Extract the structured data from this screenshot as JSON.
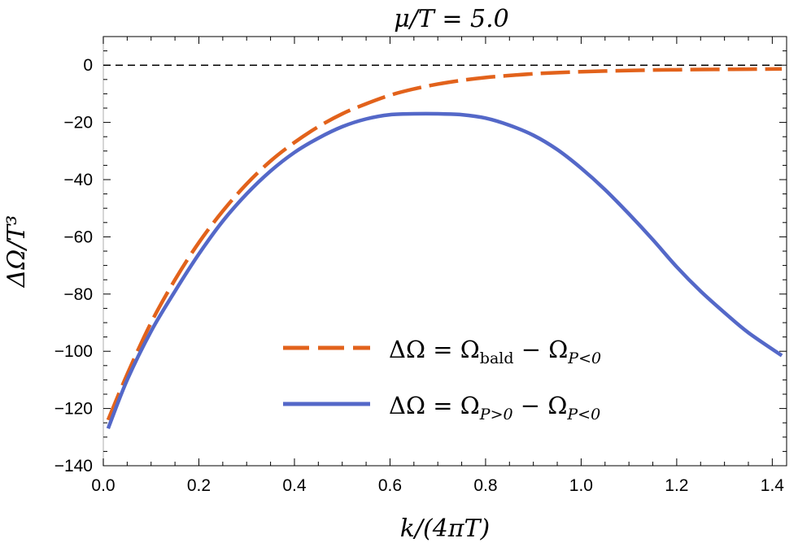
{
  "chart_data": {
    "type": "line",
    "title": "μ/T = 5.0",
    "xlabel": "k/(4πT)",
    "ylabel": "ΔΩ/T³",
    "xlim": [
      0.0,
      1.43
    ],
    "ylim": [
      -140,
      10
    ],
    "x_ticks": [
      "0.0",
      "0.2",
      "0.4",
      "0.6",
      "0.8",
      "1.0",
      "1.2",
      "1.4"
    ],
    "y_ticks": [
      "0",
      "−20",
      "−40",
      "−60",
      "−80",
      "−100",
      "−120",
      "−140"
    ],
    "reference_line": {
      "y": 0,
      "style": "dashed",
      "color": "#000000"
    },
    "grid": false,
    "legend_position": "lower-center",
    "x": [
      0.01,
      0.05,
      0.1,
      0.15,
      0.2,
      0.25,
      0.3,
      0.35,
      0.4,
      0.45,
      0.5,
      0.55,
      0.6,
      0.65,
      0.7,
      0.75,
      0.8,
      0.85,
      0.9,
      0.95,
      1.0,
      1.05,
      1.1,
      1.15,
      1.2,
      1.25,
      1.3,
      1.35,
      1.42
    ],
    "series": [
      {
        "name": "ΔΩ = Ω_bald − Ω_P<0",
        "style": "dashed",
        "color": "#E2621B",
        "values": [
          -124,
          -108,
          -90,
          -75,
          -62,
          -51,
          -41.5,
          -33.5,
          -27,
          -21.5,
          -17,
          -13.5,
          -10.5,
          -8.3,
          -6.6,
          -5.3,
          -4.3,
          -3.6,
          -3.0,
          -2.6,
          -2.3,
          -2.05,
          -1.85,
          -1.7,
          -1.6,
          -1.5,
          -1.45,
          -1.4,
          -1.3
        ]
      },
      {
        "name": "ΔΩ = Ω_P>0 − Ω_P<0",
        "style": "solid",
        "color": "#5468C8",
        "values": [
          -127,
          -110,
          -93,
          -79,
          -66,
          -54.5,
          -45,
          -37,
          -30.5,
          -25.5,
          -21.5,
          -18.8,
          -17.3,
          -17.0,
          -17.0,
          -17.3,
          -18.5,
          -21.0,
          -24.5,
          -29.5,
          -36,
          -43.5,
          -52,
          -61,
          -70.5,
          -79,
          -86.5,
          -93.5,
          -101.5
        ]
      }
    ]
  }
}
